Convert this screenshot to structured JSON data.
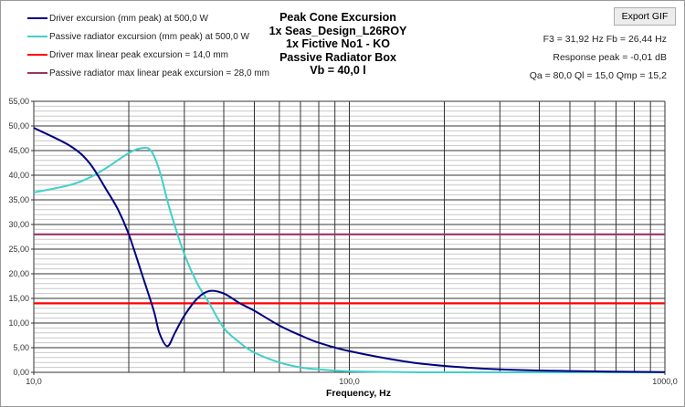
{
  "export_button": "Export GIF",
  "info": {
    "line1": "F3 = 31,92  Hz  Fb = 26,44  Hz",
    "line2": "Response peak = -0,01  dB",
    "line3": "Qa = 80,0  Ql = 15,0  Qmp = 15,2"
  },
  "chart_data": {
    "type": "line",
    "title": [
      "Peak Cone Excursion",
      "1x Seas_Design_L26ROY",
      "1x Fictive No1 - KO",
      "Passive Radiator Box",
      "Vb = 40,0 l"
    ],
    "xlabel": "Frequency,  Hz",
    "ylabel": "",
    "xscale": "log",
    "xlim": [
      10,
      1000
    ],
    "ylim": [
      0,
      55
    ],
    "grid": true,
    "legend_position": "top-left",
    "x_tick_labels": [
      "10,0",
      "100,0",
      "1000,0"
    ],
    "y_tick_labels": [
      "0,00",
      "5,00",
      "10,00",
      "15,00",
      "20,00",
      "25,00",
      "30,00",
      "35,00",
      "40,00",
      "45,00",
      "50,00",
      "55,00"
    ],
    "series": [
      {
        "name": "Driver excursion (mm peak) at 500,0 W",
        "color": "#000080",
        "x": [
          10,
          13,
          15,
          17,
          18.5,
          20,
          22,
          24,
          25,
          26.5,
          28,
          30,
          33,
          36,
          40,
          45,
          50,
          60,
          70,
          80,
          100,
          150,
          200,
          300,
          500,
          1000
        ],
        "y": [
          49.6,
          46,
          42.5,
          37,
          33,
          28,
          20,
          12.5,
          8,
          5.3,
          8,
          11.5,
          15,
          16.5,
          16,
          14,
          12.5,
          9.5,
          7.5,
          6,
          4.3,
          2.2,
          1.3,
          0.6,
          0.25,
          0.05
        ]
      },
      {
        "name": "Passive radiator excursion (mm peak) at 500,0 W",
        "color": "#40d0c8",
        "x": [
          10,
          13,
          15,
          17,
          20,
          22,
          23.5,
          25,
          27,
          30,
          33,
          36,
          40,
          45,
          50,
          60,
          70,
          80,
          100,
          150,
          200,
          1000
        ],
        "y": [
          36.5,
          38,
          39.5,
          41.5,
          44.5,
          45.5,
          45,
          41,
          33,
          24,
          18,
          14,
          9,
          6,
          4,
          2,
          1,
          0.6,
          0.2,
          0.05,
          0,
          0
        ]
      },
      {
        "name": "Driver max linear peak excursion = 14,0 mm",
        "color": "#ff0000",
        "x": [
          10,
          1000
        ],
        "y": [
          14,
          14
        ]
      },
      {
        "name": "Passive radiator max linear peak excursion = 28,0 mm",
        "color": "#993366",
        "x": [
          10,
          1000
        ],
        "y": [
          28,
          28
        ]
      }
    ]
  }
}
